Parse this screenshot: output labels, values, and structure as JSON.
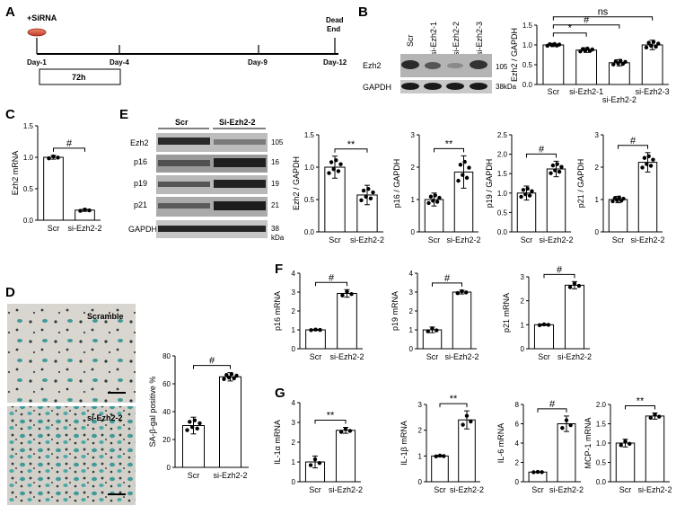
{
  "panel_labels": [
    "A",
    "B",
    "C",
    "D",
    "E",
    "F",
    "G"
  ],
  "timeline": {
    "treatment": "+SiRNA",
    "days": [
      "Day-1",
      "Day-4",
      "Day-9",
      "Day-12"
    ],
    "end_label": [
      "Dead",
      "End"
    ],
    "duration": "72h"
  },
  "blot_b": {
    "lanes": [
      "Scr",
      "si-Ezh2-1",
      "si-Ezh2-2",
      "si-Ezh2-3"
    ],
    "rows": [
      "Ezh2",
      "GAPDH"
    ],
    "markers": [
      "105",
      "38kDa"
    ]
  },
  "blot_e": {
    "groups": [
      "Scr",
      "Si-Ezh2-2"
    ],
    "rows": [
      "Ezh2",
      "p16",
      "p19",
      "p21",
      "GAPDH"
    ],
    "markers": [
      "105",
      "16",
      "19",
      "21",
      "38"
    ],
    "unit": "kDa"
  },
  "micro_d": {
    "top": "Scramble",
    "bottom": "si-Ezh2-2"
  },
  "chart_data": [
    {
      "id": "B",
      "type": "bar",
      "ylabel": "Ezh2 / GAPDH",
      "categories": [
        "Scr",
        "si-Ezh2-1",
        "si-Ezh2-2",
        "si-Ezh2-3"
      ],
      "values": [
        1.0,
        0.87,
        0.55,
        1.0
      ],
      "errors": [
        0.04,
        0.06,
        0.08,
        0.12
      ],
      "ylim": [
        0,
        1.5
      ],
      "yticks": [
        "0.0",
        "0.5",
        "1.0",
        "1.5"
      ],
      "significance": [
        {
          "a": 0,
          "b": 1,
          "label": "*"
        },
        {
          "a": 0,
          "b": 2,
          "label": "#"
        },
        {
          "a": 0,
          "b": 3,
          "label": "ns"
        }
      ]
    },
    {
      "id": "C",
      "type": "bar",
      "ylabel": "Ezh2 mRNA",
      "categories": [
        "Scr",
        "si-Ezh2-2"
      ],
      "values": [
        1.0,
        0.16
      ],
      "errors": [
        0.03,
        0.02
      ],
      "ylim": [
        0,
        1.5
      ],
      "yticks": [
        "0.0",
        "0.5",
        "1.0",
        "1.5"
      ],
      "significance": [
        {
          "a": 0,
          "b": 1,
          "label": "#"
        }
      ]
    },
    {
      "id": "E1",
      "type": "bar",
      "ylabel": "Ezh2 / GAPDH",
      "categories": [
        "Scr",
        "si-Ezh2-2"
      ],
      "values": [
        1.0,
        0.57
      ],
      "errors": [
        0.17,
        0.15
      ],
      "ylim": [
        0,
        1.5
      ],
      "yticks": [
        "0.0",
        "0.5",
        "1.0",
        "1.5"
      ],
      "significance": [
        {
          "a": 0,
          "b": 1,
          "label": "**"
        }
      ]
    },
    {
      "id": "E2",
      "type": "bar",
      "ylabel": "p16 / GAPDH",
      "categories": [
        "Scr",
        "si-Ezh2-2"
      ],
      "values": [
        1.0,
        1.85
      ],
      "errors": [
        0.2,
        0.5
      ],
      "ylim": [
        0,
        3
      ],
      "yticks": [
        "0",
        "1",
        "2",
        "3"
      ],
      "significance": [
        {
          "a": 0,
          "b": 1,
          "label": "**"
        }
      ]
    },
    {
      "id": "E3",
      "type": "bar",
      "ylabel": "p19 / GAPDH",
      "categories": [
        "Scr",
        "si-Ezh2-2"
      ],
      "values": [
        1.0,
        1.62
      ],
      "errors": [
        0.18,
        0.2
      ],
      "ylim": [
        0,
        2.5
      ],
      "yticks": [
        "0.0",
        "0.5",
        "1.0",
        "1.5",
        "2.0",
        "2.5"
      ],
      "significance": [
        {
          "a": 0,
          "b": 1,
          "label": "#"
        }
      ]
    },
    {
      "id": "E4",
      "type": "bar",
      "ylabel": "p21 / GAPDH",
      "categories": [
        "Scr",
        "si-Ezh2-2"
      ],
      "values": [
        1.0,
        2.15
      ],
      "errors": [
        0.1,
        0.3
      ],
      "ylim": [
        0,
        3
      ],
      "yticks": [
        "0",
        "1",
        "2",
        "3"
      ],
      "significance": [
        {
          "a": 0,
          "b": 1,
          "label": "#"
        }
      ]
    },
    {
      "id": "D",
      "type": "bar",
      "ylabel": "SA-β-gal positive %",
      "categories": [
        "Scr",
        "si-Ezh2-2"
      ],
      "values": [
        30,
        65
      ],
      "errors": [
        6,
        3
      ],
      "ylim": [
        0,
        80
      ],
      "yticks": [
        "0",
        "20",
        "40",
        "60",
        "80"
      ],
      "significance": [
        {
          "a": 0,
          "b": 1,
          "label": "#"
        }
      ]
    },
    {
      "id": "F1",
      "type": "bar",
      "ylabel": "p16 mRNA",
      "categories": [
        "Scr",
        "si-Ezh2-2"
      ],
      "values": [
        1.0,
        2.93
      ],
      "errors": [
        0.03,
        0.2
      ],
      "ylim": [
        0,
        4
      ],
      "yticks": [
        "0",
        "1",
        "2",
        "3",
        "4"
      ],
      "significance": [
        {
          "a": 0,
          "b": 1,
          "label": "#"
        }
      ]
    },
    {
      "id": "F2",
      "type": "bar",
      "ylabel": "p19 mRNA",
      "categories": [
        "Scr",
        "si-Ezh2-2"
      ],
      "values": [
        1.0,
        3.0
      ],
      "errors": [
        0.15,
        0.1
      ],
      "ylim": [
        0,
        4
      ],
      "yticks": [
        "0",
        "1",
        "2",
        "3",
        "4"
      ],
      "significance": [
        {
          "a": 0,
          "b": 1,
          "label": "#"
        }
      ]
    },
    {
      "id": "F3",
      "type": "bar",
      "ylabel": "p21 mRNA",
      "categories": [
        "Scr",
        "si-Ezh2-2"
      ],
      "values": [
        1.0,
        2.65
      ],
      "errors": [
        0.03,
        0.15
      ],
      "ylim": [
        0,
        3
      ],
      "yticks": [
        "0",
        "1",
        "2",
        "3"
      ],
      "significance": [
        {
          "a": 0,
          "b": 1,
          "label": "#"
        }
      ]
    },
    {
      "id": "G1",
      "type": "bar",
      "ylabel": "IL-1α mRNA",
      "categories": [
        "Scr",
        "si-Ezh2-2"
      ],
      "values": [
        1.0,
        2.6
      ],
      "errors": [
        0.3,
        0.15
      ],
      "ylim": [
        0,
        4
      ],
      "yticks": [
        "0",
        "1",
        "2",
        "3",
        "4"
      ],
      "significance": [
        {
          "a": 0,
          "b": 1,
          "label": "**"
        }
      ]
    },
    {
      "id": "G2",
      "type": "bar",
      "ylabel": "IL-1β mRNA",
      "categories": [
        "Scr",
        "si-Ezh2-2"
      ],
      "values": [
        1.0,
        2.4
      ],
      "errors": [
        0.03,
        0.35
      ],
      "ylim": [
        0,
        3
      ],
      "yticks": [
        "0",
        "1",
        "2",
        "3"
      ],
      "significance": [
        {
          "a": 0,
          "b": 1,
          "label": "**"
        }
      ]
    },
    {
      "id": "G3",
      "type": "bar",
      "ylabel": "IL-6 mRNA",
      "categories": [
        "Scr",
        "si-Ezh2-2"
      ],
      "values": [
        1.0,
        6.0
      ],
      "errors": [
        0.03,
        0.8
      ],
      "ylim": [
        0,
        8
      ],
      "yticks": [
        "0",
        "2",
        "4",
        "6",
        "8"
      ],
      "significance": [
        {
          "a": 0,
          "b": 1,
          "label": "#"
        }
      ]
    },
    {
      "id": "G4",
      "type": "bar",
      "ylabel": "MCP-1 mRNA",
      "categories": [
        "Scr",
        "si-Ezh2-2"
      ],
      "values": [
        1.0,
        1.7
      ],
      "errors": [
        0.1,
        0.08
      ],
      "ylim": [
        0,
        2
      ],
      "yticks": [
        "0.0",
        "0.5",
        "1.0",
        "1.5",
        "2.0"
      ],
      "significance": [
        {
          "a": 0,
          "b": 1,
          "label": "**"
        }
      ]
    }
  ]
}
